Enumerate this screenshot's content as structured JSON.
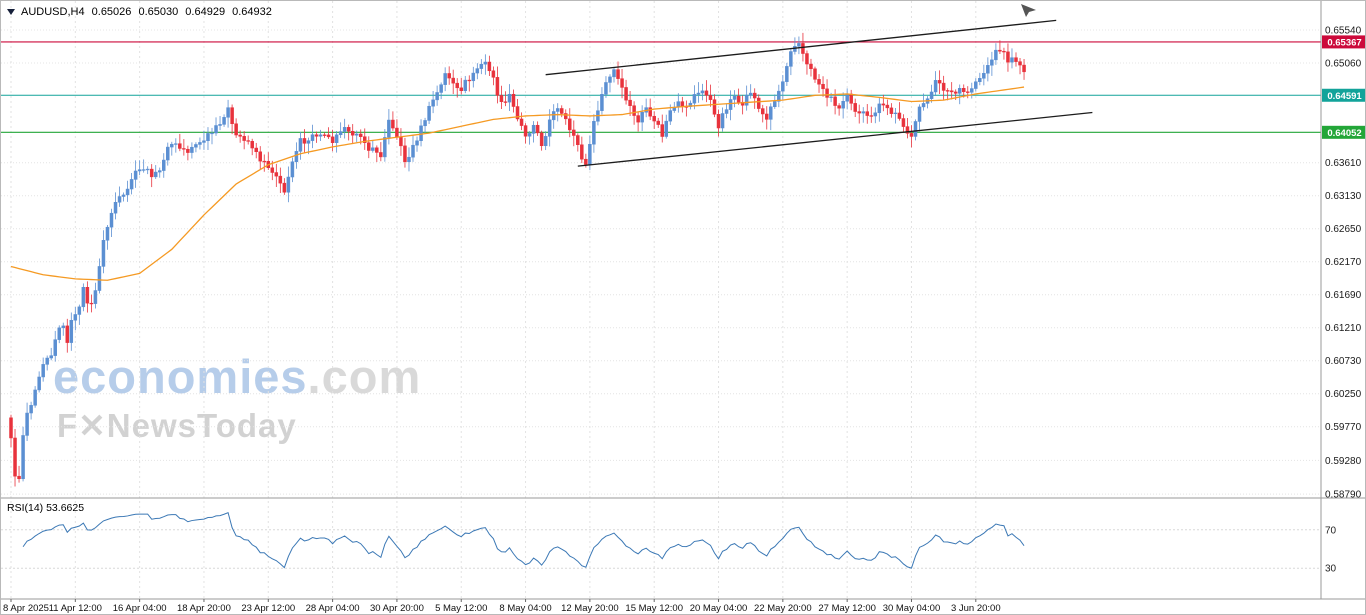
{
  "header": {
    "symbol_period": "AUDUSD,H4",
    "open": "0.65026",
    "high": "0.65030",
    "low": "0.64929",
    "close": "0.64932"
  },
  "watermark": {
    "brand": "economies",
    "brand_suffix": ".com",
    "sub": "F✕NewsToday"
  },
  "rsi": {
    "label": "RSI(14) 53.6625",
    "name": "RSI(14)",
    "value": "53.6625",
    "period": 14,
    "levels": [
      70,
      30
    ]
  },
  "axes": {
    "price_ticks": [
      {
        "price": 0.6554,
        "label": "0.65540"
      },
      {
        "price": 0.6506,
        "label": "0.65060"
      },
      {
        "price": 0.6361,
        "label": "0.63610"
      },
      {
        "price": 0.6313,
        "label": "0.63130"
      },
      {
        "price": 0.6265,
        "label": "0.62650"
      },
      {
        "price": 0.6217,
        "label": "0.62170"
      },
      {
        "price": 0.6169,
        "label": "0.61690"
      },
      {
        "price": 0.6121,
        "label": "0.61210"
      },
      {
        "price": 0.6073,
        "label": "0.60730"
      },
      {
        "price": 0.6025,
        "label": "0.60250"
      },
      {
        "price": 0.5977,
        "label": "0.59770"
      },
      {
        "price": 0.5928,
        "label": "0.59280"
      },
      {
        "price": 0.5879,
        "label": "0.58790"
      }
    ],
    "time_ticks": [
      {
        "bar": 0,
        "label": "8 Apr 2025"
      },
      {
        "bar": 16,
        "label": "11 Apr 12:00"
      },
      {
        "bar": 32,
        "label": "16 Apr 04:00"
      },
      {
        "bar": 48,
        "label": "18 Apr 20:00"
      },
      {
        "bar": 64,
        "label": "23 Apr 12:00"
      },
      {
        "bar": 80,
        "label": "28 Apr 04:00"
      },
      {
        "bar": 96,
        "label": "30 Apr 20:00"
      },
      {
        "bar": 112,
        "label": "5 May 12:00"
      },
      {
        "bar": 128,
        "label": "8 May 04:00"
      },
      {
        "bar": 144,
        "label": "12 May 20:00"
      },
      {
        "bar": 160,
        "label": "15 May 12:00"
      },
      {
        "bar": 176,
        "label": "20 May 04:00"
      },
      {
        "bar": 192,
        "label": "22 May 20:00"
      },
      {
        "bar": 208,
        "label": "27 May 12:00"
      },
      {
        "bar": 224,
        "label": "30 May 04:00"
      },
      {
        "bar": 240,
        "label": "3 Jun 20:00"
      }
    ]
  },
  "chart_data": {
    "type": "candlestick",
    "symbol": "AUDUSD",
    "timeframe": "H4",
    "title": "AUDUSD,H4",
    "bars": 253,
    "first_open": 0.599,
    "last_candle": {
      "open": 0.65026,
      "high": 0.6503,
      "low": 0.64929,
      "close": 0.64932
    },
    "visible_price_range": [
      0.588,
      0.6596
    ],
    "levels": [
      {
        "name": "resistance",
        "price": 0.65367,
        "label": "0.65367",
        "color": "#cc0a3b",
        "badge": "#cc0a3b"
      },
      {
        "name": "pivot",
        "price": 0.64591,
        "label": "0.64591",
        "color": "#12a39a",
        "badge": "#12a39a"
      },
      {
        "name": "support",
        "price": 0.64052,
        "label": "0.64052",
        "color": "#23a638",
        "badge": "#23a638"
      }
    ],
    "colors": {
      "up": "#5b8fd2",
      "down": "#e8323c",
      "ma": "#f59a23",
      "rsi": "#3b78b5",
      "trendline": "#1c1c1c"
    },
    "price_keypoints": [
      [
        0,
        0.5955
      ],
      [
        1,
        0.5912
      ],
      [
        2,
        0.5896
      ],
      [
        3,
        0.5962
      ],
      [
        4,
        0.5992
      ],
      [
        6,
        0.6022
      ],
      [
        8,
        0.6062
      ],
      [
        10,
        0.6076
      ],
      [
        12,
        0.6126
      ],
      [
        14,
        0.6106
      ],
      [
        16,
        0.6146
      ],
      [
        18,
        0.6172
      ],
      [
        20,
        0.6152
      ],
      [
        22,
        0.6212
      ],
      [
        24,
        0.6272
      ],
      [
        26,
        0.6302
      ],
      [
        28,
        0.6322
      ],
      [
        32,
        0.6356
      ],
      [
        36,
        0.6342
      ],
      [
        40,
        0.6392
      ],
      [
        44,
        0.6376
      ],
      [
        48,
        0.6396
      ],
      [
        52,
        0.6422
      ],
      [
        54,
        0.6436
      ],
      [
        56,
        0.6406
      ],
      [
        60,
        0.6382
      ],
      [
        64,
        0.6352
      ],
      [
        68,
        0.6322
      ],
      [
        70,
        0.6358
      ],
      [
        72,
        0.6392
      ],
      [
        76,
        0.6402
      ],
      [
        80,
        0.6392
      ],
      [
        84,
        0.6412
      ],
      [
        88,
        0.6388
      ],
      [
        92,
        0.6372
      ],
      [
        94,
        0.6418
      ],
      [
        96,
        0.6402
      ],
      [
        98,
        0.6362
      ],
      [
        100,
        0.6382
      ],
      [
        102,
        0.6412
      ],
      [
        104,
        0.6442
      ],
      [
        108,
        0.6488
      ],
      [
        112,
        0.647
      ],
      [
        116,
        0.6498
      ],
      [
        118,
        0.651
      ],
      [
        120,
        0.6482
      ],
      [
        122,
        0.6446
      ],
      [
        124,
        0.6462
      ],
      [
        126,
        0.6426
      ],
      [
        128,
        0.6396
      ],
      [
        130,
        0.6412
      ],
      [
        132,
        0.6386
      ],
      [
        134,
        0.642
      ],
      [
        136,
        0.6442
      ],
      [
        138,
        0.6428
      ],
      [
        140,
        0.64
      ],
      [
        142,
        0.6368
      ],
      [
        143,
        0.6358
      ],
      [
        144,
        0.6392
      ],
      [
        146,
        0.6442
      ],
      [
        148,
        0.6478
      ],
      [
        150,
        0.6498
      ],
      [
        152,
        0.6472
      ],
      [
        154,
        0.6442
      ],
      [
        156,
        0.6422
      ],
      [
        158,
        0.6442
      ],
      [
        160,
        0.6426
      ],
      [
        162,
        0.6402
      ],
      [
        164,
        0.6438
      ],
      [
        166,
        0.6454
      ],
      [
        168,
        0.644
      ],
      [
        170,
        0.6458
      ],
      [
        172,
        0.6468
      ],
      [
        174,
        0.645
      ],
      [
        176,
        0.6416
      ],
      [
        178,
        0.644
      ],
      [
        180,
        0.6458
      ],
      [
        182,
        0.645
      ],
      [
        184,
        0.6464
      ],
      [
        186,
        0.644
      ],
      [
        188,
        0.6426
      ],
      [
        190,
        0.645
      ],
      [
        192,
        0.6478
      ],
      [
        194,
        0.6518
      ],
      [
        196,
        0.6534
      ],
      [
        198,
        0.6508
      ],
      [
        200,
        0.6482
      ],
      [
        202,
        0.6466
      ],
      [
        204,
        0.6452
      ],
      [
        206,
        0.644
      ],
      [
        208,
        0.6456
      ],
      [
        210,
        0.6432
      ],
      [
        212,
        0.644
      ],
      [
        214,
        0.6426
      ],
      [
        216,
        0.645
      ],
      [
        218,
        0.644
      ],
      [
        220,
        0.643
      ],
      [
        222,
        0.6412
      ],
      [
        224,
        0.6404
      ],
      [
        226,
        0.6438
      ],
      [
        228,
        0.6458
      ],
      [
        230,
        0.6478
      ],
      [
        232,
        0.6468
      ],
      [
        234,
        0.6464
      ],
      [
        236,
        0.647
      ],
      [
        238,
        0.6462
      ],
      [
        240,
        0.6476
      ],
      [
        242,
        0.649
      ],
      [
        244,
        0.6514
      ],
      [
        246,
        0.6526
      ],
      [
        248,
        0.6512
      ],
      [
        250,
        0.6508
      ],
      [
        251,
        0.6503
      ],
      [
        252,
        0.64932
      ]
    ],
    "ma_keypoints": [
      [
        0,
        0.621
      ],
      [
        8,
        0.6198
      ],
      [
        16,
        0.6192
      ],
      [
        24,
        0.619
      ],
      [
        32,
        0.62
      ],
      [
        40,
        0.6235
      ],
      [
        48,
        0.6285
      ],
      [
        56,
        0.633
      ],
      [
        64,
        0.6358
      ],
      [
        72,
        0.6374
      ],
      [
        80,
        0.6384
      ],
      [
        88,
        0.6392
      ],
      [
        96,
        0.6398
      ],
      [
        104,
        0.6404
      ],
      [
        112,
        0.6414
      ],
      [
        120,
        0.6424
      ],
      [
        128,
        0.6429
      ],
      [
        136,
        0.6431
      ],
      [
        144,
        0.6429
      ],
      [
        152,
        0.6431
      ],
      [
        160,
        0.6439
      ],
      [
        168,
        0.6443
      ],
      [
        176,
        0.6446
      ],
      [
        184,
        0.6449
      ],
      [
        192,
        0.6452
      ],
      [
        200,
        0.6459
      ],
      [
        208,
        0.6461
      ],
      [
        216,
        0.6456
      ],
      [
        224,
        0.645
      ],
      [
        232,
        0.6452
      ],
      [
        240,
        0.6461
      ],
      [
        252,
        0.6471
      ]
    ],
    "trendlines": [
      {
        "name": "upper-channel-line",
        "bar1": 133,
        "p1": 0.6489,
        "bar2": 260,
        "p2": 0.6568
      },
      {
        "name": "lower-channel-line",
        "bar1": 141,
        "p1": 0.6356,
        "bar2": 269,
        "p2": 0.6434
      }
    ]
  }
}
